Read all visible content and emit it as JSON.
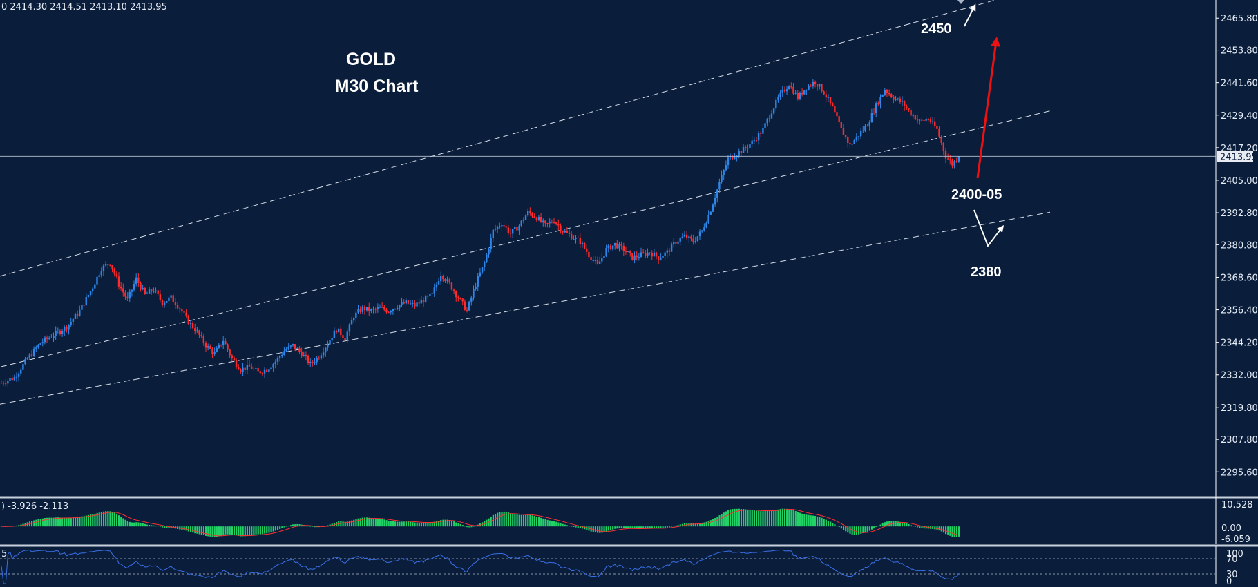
{
  "ohlc_header": "0   2414.30  2414.51  2413.10  2413.95",
  "chart_data": {
    "type": "candlestick",
    "title": "GOLD",
    "subtitle": "M30 Chart",
    "instrument": "GOLD",
    "timeframe": "M30",
    "y_ticks": [
      "2465.80",
      "2453.80",
      "2441.60",
      "2429.40",
      "2417.20",
      "2405.00",
      "2392.80",
      "2380.80",
      "2368.60",
      "2356.40",
      "2344.20",
      "2332.00",
      "2319.80",
      "2307.80",
      "2295.60"
    ],
    "ylim": [
      2286.6,
      2472.6
    ],
    "current_price": 2413.95,
    "current_price_label": "2413.95",
    "candles": [],
    "price_path": [
      [
        0,
        2329
      ],
      [
        6,
        2331
      ],
      [
        12,
        2338
      ],
      [
        18,
        2344
      ],
      [
        24,
        2347
      ],
      [
        30,
        2350
      ],
      [
        36,
        2356
      ],
      [
        42,
        2365
      ],
      [
        46,
        2372
      ],
      [
        50,
        2374
      ],
      [
        54,
        2366
      ],
      [
        58,
        2360
      ],
      [
        62,
        2368
      ],
      [
        66,
        2362
      ],
      [
        70,
        2364
      ],
      [
        74,
        2359
      ],
      [
        78,
        2361
      ],
      [
        82,
        2357
      ],
      [
        86,
        2352
      ],
      [
        90,
        2348
      ],
      [
        94,
        2343
      ],
      [
        98,
        2340
      ],
      [
        102,
        2345
      ],
      [
        106,
        2338
      ],
      [
        110,
        2334
      ],
      [
        114,
        2335
      ],
      [
        118,
        2333
      ],
      [
        122,
        2334
      ],
      [
        126,
        2337
      ],
      [
        130,
        2341
      ],
      [
        134,
        2343
      ],
      [
        138,
        2340
      ],
      [
        142,
        2336
      ],
      [
        146,
        2339
      ],
      [
        150,
        2344
      ],
      [
        154,
        2349
      ],
      [
        158,
        2346
      ],
      [
        162,
        2354
      ],
      [
        166,
        2357
      ],
      [
        170,
        2356
      ],
      [
        174,
        2357
      ],
      [
        178,
        2356
      ],
      [
        182,
        2358
      ],
      [
        186,
        2359
      ],
      [
        190,
        2358
      ],
      [
        194,
        2360
      ],
      [
        198,
        2362
      ],
      [
        202,
        2370
      ],
      [
        206,
        2366
      ],
      [
        210,
        2361
      ],
      [
        214,
        2356
      ],
      [
        218,
        2366
      ],
      [
        222,
        2374
      ],
      [
        226,
        2386
      ],
      [
        230,
        2389
      ],
      [
        234,
        2385
      ],
      [
        238,
        2388
      ],
      [
        242,
        2393
      ],
      [
        246,
        2391
      ],
      [
        250,
        2388
      ],
      [
        254,
        2390
      ],
      [
        258,
        2386
      ],
      [
        262,
        2384
      ],
      [
        266,
        2382
      ],
      [
        270,
        2377
      ],
      [
        274,
        2373
      ],
      [
        278,
        2379
      ],
      [
        282,
        2381
      ],
      [
        286,
        2379
      ],
      [
        290,
        2376
      ],
      [
        294,
        2377
      ],
      [
        298,
        2378
      ],
      [
        302,
        2376
      ],
      [
        306,
        2378
      ],
      [
        310,
        2382
      ],
      [
        314,
        2384
      ],
      [
        318,
        2382
      ],
      [
        322,
        2386
      ],
      [
        326,
        2394
      ],
      [
        330,
        2404
      ],
      [
        334,
        2413
      ],
      [
        338,
        2415
      ],
      [
        342,
        2417
      ],
      [
        346,
        2420
      ],
      [
        350,
        2424
      ],
      [
        354,
        2431
      ],
      [
        358,
        2437
      ],
      [
        362,
        2441
      ],
      [
        366,
        2436
      ],
      [
        370,
        2440
      ],
      [
        374,
        2442
      ],
      [
        378,
        2438
      ],
      [
        382,
        2432
      ],
      [
        386,
        2424
      ],
      [
        390,
        2418
      ],
      [
        394,
        2422
      ],
      [
        398,
        2426
      ],
      [
        402,
        2433
      ],
      [
        406,
        2439
      ],
      [
        410,
        2436
      ],
      [
        414,
        2434
      ],
      [
        418,
        2430
      ],
      [
        422,
        2427
      ],
      [
        426,
        2428
      ],
      [
        430,
        2424
      ],
      [
        434,
        2414
      ],
      [
        437,
        2411
      ],
      [
        440,
        2413.95
      ]
    ],
    "trend_lines": [
      {
        "x1": 0,
        "y1": 2369,
        "x2": 1530,
        "y2": 2479
      },
      {
        "x1": 0,
        "y1": 2321,
        "x2": 1520,
        "y2": 2393
      },
      {
        "x1": 1,
        "y1": 2335,
        "x2": 1520,
        "y2": 2431
      }
    ],
    "annotations": [
      {
        "text": "2450",
        "price": 2450
      },
      {
        "text": "2400-05",
        "price": 2402.5
      },
      {
        "text": "2380",
        "price": 2380
      }
    ],
    "colors": {
      "background": "#0a1e3c",
      "bull_candle": "#2e86e8",
      "bear_candle": "#ff2a2a",
      "macd_hist": "#22d266",
      "macd_signal": "#ff3030",
      "rsi_line": "#3a6fe8",
      "projection_up": "#ee1111"
    },
    "macd": {
      "label": ") -3.926 -2.113",
      "ticks": [
        "10.528",
        "0.00",
        "-6.059"
      ],
      "ylim": [
        -7.8,
        12.5
      ],
      "hist_series": [],
      "signal_series": []
    },
    "rsi": {
      "label": "5",
      "ticks": [
        "100",
        "70",
        "30",
        "0"
      ],
      "ylim": [
        0,
        100
      ],
      "series": []
    }
  }
}
